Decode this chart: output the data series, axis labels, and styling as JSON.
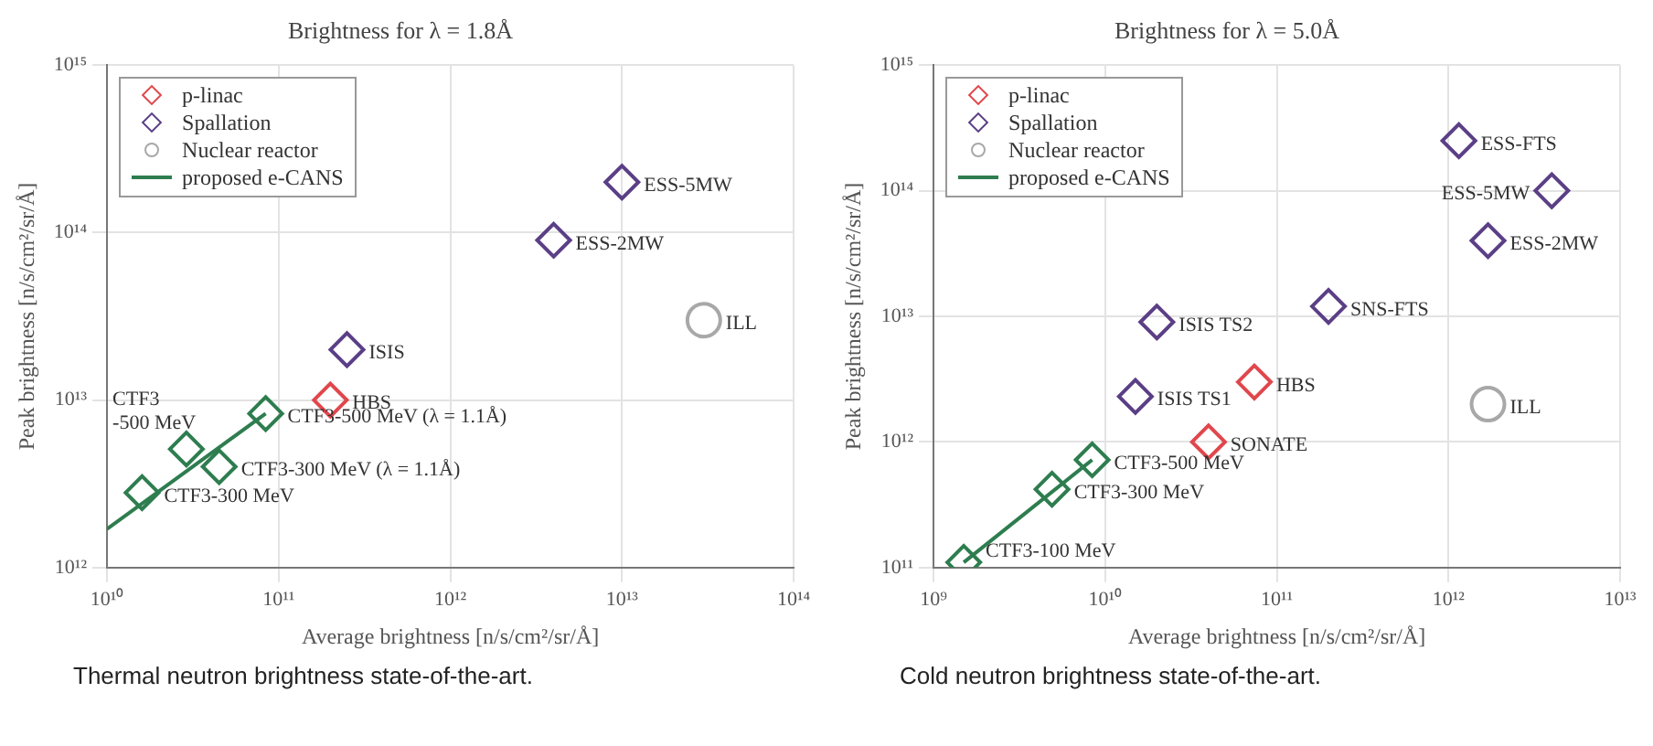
{
  "chart_data": [
    {
      "type": "scatter",
      "title": "Brightness for λ = 1.8Å",
      "xlabel": "Average brightness [n/s/cm²/sr/Å]",
      "ylabel": "Peak brightness [n/s/cm²/sr/Å]",
      "log": "xy",
      "grid": true,
      "legend": "top left",
      "xlim": [
        10000000000.0,
        100000000000000.0
      ],
      "xticks": [
        {
          "value": 10000000000.0,
          "label": "10¹⁰"
        },
        {
          "value": 100000000000.0,
          "label": "10¹¹"
        },
        {
          "value": 1000000000000.0,
          "label": "10¹²"
        },
        {
          "value": 10000000000000.0,
          "label": "10¹³"
        },
        {
          "value": 100000000000000.0,
          "label": "10¹⁴"
        }
      ],
      "ylim": [
        1000000000000.0,
        1000000000000000.0
      ],
      "yticks": [
        {
          "value": 1000000000000.0,
          "label": "10¹²"
        },
        {
          "value": 10000000000000.0,
          "label": "10¹³"
        },
        {
          "value": 100000000000000.0,
          "label": "10¹⁴"
        },
        {
          "value": 1000000000000000.0,
          "label": "10¹⁵"
        }
      ],
      "series": [
        {
          "name": "p-linac",
          "color": "#e0474c",
          "marker": "diamond",
          "x": [
            200000000000.0
          ],
          "values": [
            10000000000000.0
          ]
        },
        {
          "name": "Spallation",
          "color": "#5b3f86",
          "marker": "diamond",
          "x": [
            250000000000.0,
            4000000000000.0,
            10000000000000.0
          ],
          "values": [
            20000000000000.0,
            90000000000000.0,
            200000000000000.0
          ]
        },
        {
          "name": "Nuclear reactor",
          "color": "#a8a8a8",
          "marker": "circle",
          "x": [
            30000000000000.0
          ],
          "values": [
            30000000000000.0
          ]
        },
        {
          "name": "proposed e-CANS",
          "type": "line",
          "color": "#2e7d4f",
          "marker": "none",
          "x": [
            10000000000.0,
            84000000000.0
          ],
          "values": [
            1700000000000.0,
            8300000000000.0
          ]
        },
        {
          "color": "#2e7d4f",
          "marker": "diamond",
          "x": [
            16000000000.0,
            29000000000.0,
            45000000000.0,
            84000000000.0
          ],
          "values": [
            2800000000000.0,
            5100000000000.0,
            4000000000000.0,
            8300000000000.0
          ]
        }
      ],
      "annotations": [
        {
          "text": "HBS",
          "x": 200000000000.0,
          "y": 10000000000000.0
        },
        {
          "text": "ISIS",
          "x": 250000000000.0,
          "y": 20000000000000.0
        },
        {
          "text": "ESS-2MW",
          "x": 4000000000000.0,
          "y": 90000000000000.0
        },
        {
          "text": "ESS-5MW",
          "x": 10000000000000.0,
          "y": 200000000000000.0
        },
        {
          "text": "ILL",
          "x": 30000000000000.0,
          "y": 30000000000000.0
        },
        {
          "text": "CTF3-300 MeV",
          "x": 16000000000.0,
          "y": 2800000000000.0
        },
        {
          "text": "CTF3\n-500 MeV",
          "x": 29000000000.0,
          "y": 5100000000000.0
        },
        {
          "text": "CTF3-300 MeV (λ = 1.1Å)",
          "x": 45000000000.0,
          "y": 4000000000000.0
        },
        {
          "text": "CTF3-500 MeV (λ = 1.1Å)",
          "x": 84000000000.0,
          "y": 8300000000000.0
        },
        "Thermal neutron brightness state-of-the-art."
      ]
    },
    {
      "type": "scatter",
      "title": "Brightness for λ = 5.0Å",
      "xlabel": "Average brightness [n/s/cm²/sr/Å]",
      "ylabel": "Peak brightness [n/s/cm²/sr/Å]",
      "log": "xy",
      "grid": true,
      "legend": "top left",
      "xlim": [
        1000000000.0,
        10000000000000.0
      ],
      "xticks": [
        {
          "value": 1000000000.0,
          "label": "10⁹"
        },
        {
          "value": 10000000000.0,
          "label": "10¹⁰"
        },
        {
          "value": 100000000000.0,
          "label": "10¹¹"
        },
        {
          "value": 1000000000000.0,
          "label": "10¹²"
        },
        {
          "value": 10000000000000.0,
          "label": "10¹³"
        }
      ],
      "ylim": [
        100000000000.0,
        1000000000000000.0
      ],
      "yticks": [
        {
          "value": 100000000000.0,
          "label": "10¹¹"
        },
        {
          "value": 1000000000000.0,
          "label": "10¹²"
        },
        {
          "value": 10000000000000.0,
          "label": "10¹³"
        },
        {
          "value": 100000000000000.0,
          "label": "10¹⁴"
        },
        {
          "value": 1000000000000000.0,
          "label": "10¹⁵"
        }
      ],
      "series": [
        {
          "name": "p-linac",
          "color": "#e0474c",
          "marker": "diamond",
          "x": [
            74000000000.0,
            40000000000.0
          ],
          "values": [
            3000000000000.0,
            1000000000000.0
          ]
        },
        {
          "name": "Spallation",
          "color": "#5b3f86",
          "marker": "diamond",
          "x": [
            15000000000.0,
            20000000000.0,
            200000000000.0,
            1700000000000.0,
            4000000000000.0,
            1150000000000.0
          ],
          "values": [
            2300000000000.0,
            9000000000000.0,
            12000000000000.0,
            40000000000000.0,
            100000000000000.0,
            250000000000000.0
          ]
        },
        {
          "name": "Nuclear reactor",
          "color": "#a8a8a8",
          "marker": "circle",
          "x": [
            1700000000000.0
          ],
          "values": [
            2000000000000.0
          ]
        },
        {
          "name": "proposed e-CANS",
          "type": "line",
          "color": "#2e7d4f",
          "marker": "none",
          "x": [
            1500000000.0,
            8400000000.0
          ],
          "values": [
            110000000000.0,
            720000000000.0
          ]
        },
        {
          "color": "#2e7d4f",
          "marker": "diamond",
          "x": [
            1500000000.0,
            4900000000.0,
            8400000000.0
          ],
          "values": [
            110000000000.0,
            420000000000.0,
            720000000000.0
          ]
        }
      ],
      "annotations": [
        {
          "text": "HBS",
          "x": 74000000000.0,
          "y": 3000000000000.0
        },
        {
          "text": "SONATE",
          "x": 40000000000.0,
          "y": 1000000000000.0
        },
        {
          "text": "ISIS TS1",
          "x": 15000000000.0,
          "y": 2300000000000.0
        },
        {
          "text": "ISIS TS2",
          "x": 20000000000.0,
          "y": 9000000000000.0
        },
        {
          "text": "SNS-FTS",
          "x": 200000000000.0,
          "y": 12000000000000.0
        },
        {
          "text": "ESS-2MW",
          "x": 1700000000000.0,
          "y": 40000000000000.0
        },
        {
          "text": "ESS-5MW",
          "x": 4000000000000.0,
          "y": 100000000000000.0
        },
        {
          "text": "ESS-FTS",
          "x": 1150000000000.0,
          "y": 250000000000000.0
        },
        {
          "text": "ILL",
          "x": 1700000000000.0,
          "y": 2000000000000.0
        },
        {
          "text": "CTF3-100 MeV",
          "x": 1500000000.0,
          "y": 110000000000.0
        },
        {
          "text": "CTF3-300 MeV",
          "x": 4900000000.0,
          "y": 420000000000.0
        },
        {
          "text": "CTF3-500 MeV",
          "x": 8400000000.0,
          "y": 720000000000.0
        },
        "Cold neutron brightness state-of-the-art."
      ]
    }
  ]
}
